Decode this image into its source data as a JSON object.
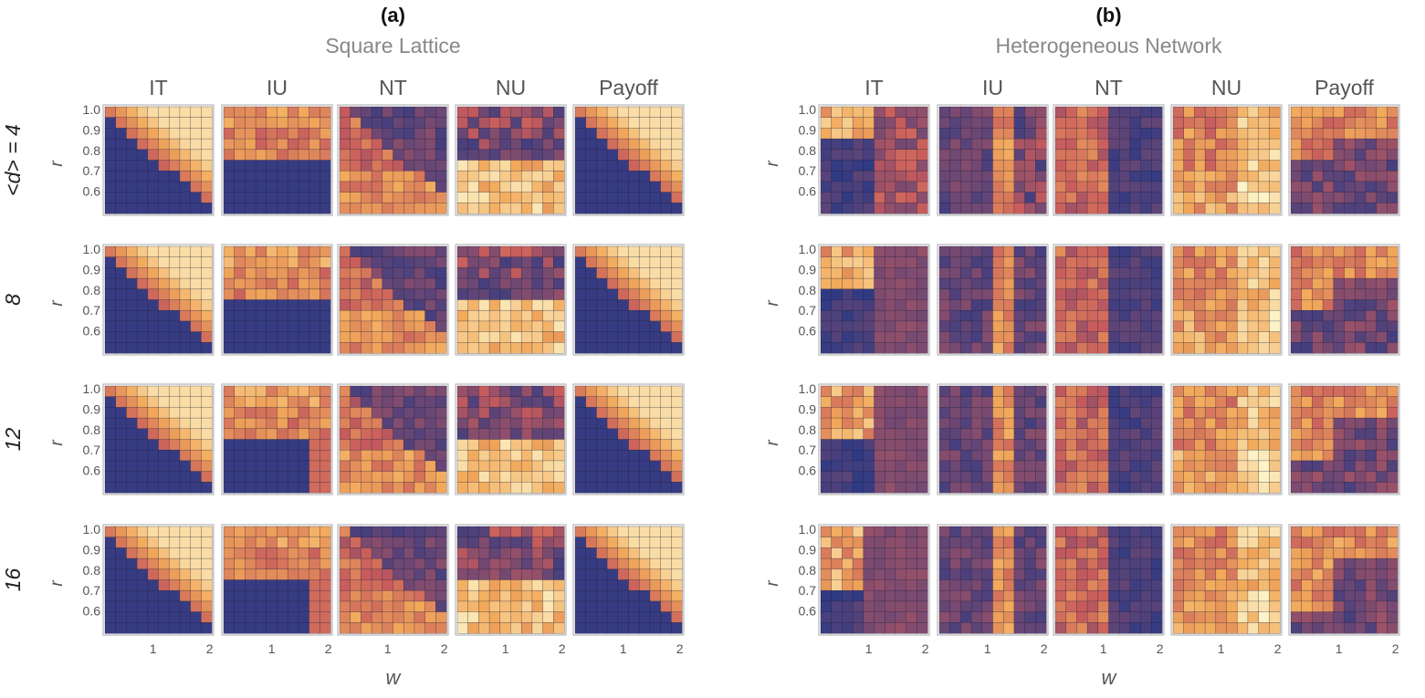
{
  "chart_data": {
    "type": "heatmap",
    "x_label": "w",
    "y_label": "r",
    "y_ticks": [
      "1.0",
      "0.9",
      "0.8",
      "0.7",
      "0.6"
    ],
    "x_ticks": [
      "1",
      "2"
    ],
    "columns": [
      "IT",
      "IU",
      "NT",
      "NU",
      "Payoff"
    ],
    "row_labels": [
      "<d> = 4",
      "8",
      "12",
      "16"
    ],
    "grid_size": 10,
    "value_range": [
      0,
      1
    ],
    "colormap": [
      "#2e3a84",
      "#c75b5c",
      "#f2a95a",
      "#fdf3c6"
    ],
    "panels": [
      {
        "label": "(a)",
        "subtitle": "Square Lattice",
        "seed": 11
      },
      {
        "label": "(b)",
        "subtitle": "Heterogeneous Network",
        "seed": 29
      }
    ]
  }
}
